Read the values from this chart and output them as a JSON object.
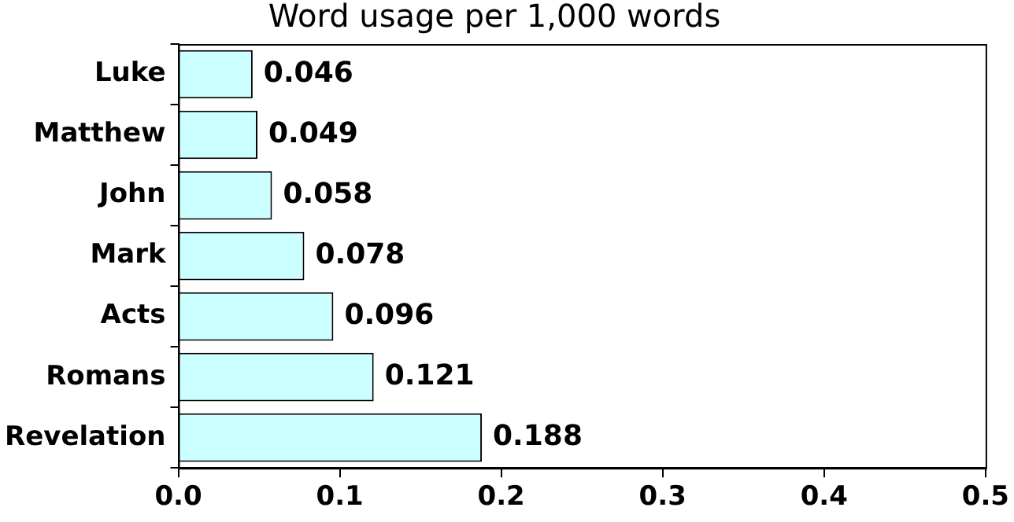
{
  "chart_data": {
    "type": "bar",
    "orientation": "horizontal",
    "title": "Word usage per 1,000 words",
    "categories": [
      "Luke",
      "Matthew",
      "John",
      "Mark",
      "Acts",
      "Romans",
      "Revelation"
    ],
    "values": [
      0.046,
      0.049,
      0.058,
      0.078,
      0.096,
      0.121,
      0.188
    ],
    "color": "#ccffff",
    "xlim": [
      0,
      0.5
    ],
    "xticks": [
      {
        "value": 0,
        "label": "0.0"
      },
      {
        "value": 0.1,
        "label": "0.1"
      },
      {
        "value": 0.2,
        "label": "0.2"
      },
      {
        "value": 0.3,
        "label": "0.3"
      },
      {
        "value": 0.4,
        "label": "0.4"
      },
      {
        "value": 0.5,
        "label": "0.5"
      }
    ],
    "data_labels": true,
    "grid": false,
    "legend": false
  }
}
